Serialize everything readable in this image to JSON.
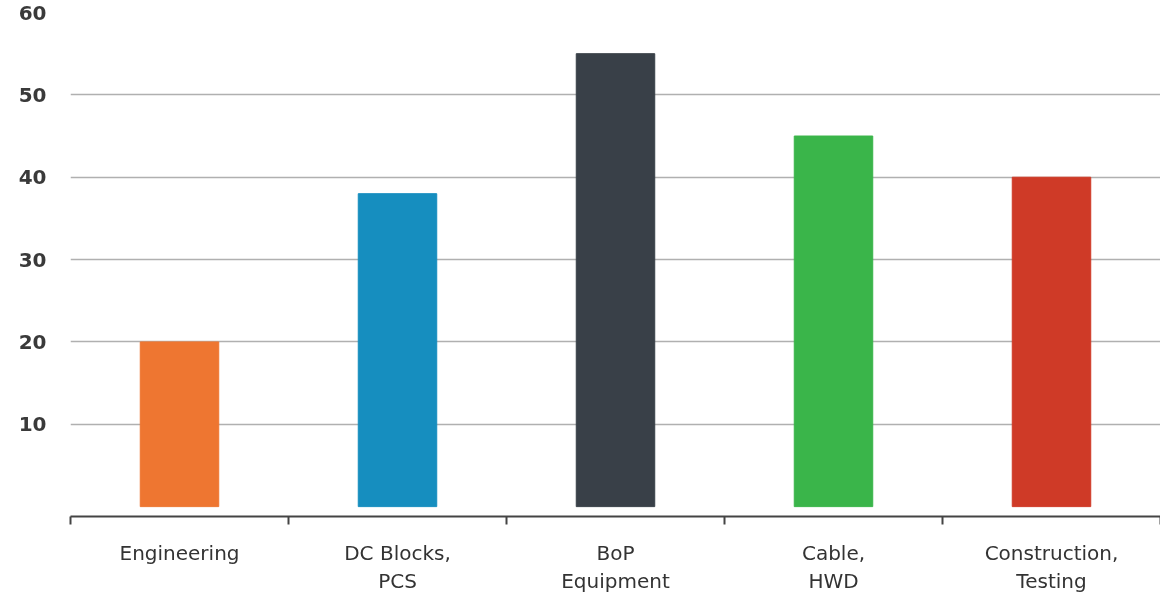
{
  "chart_data": {
    "type": "bar",
    "categories": [
      "Engineering",
      "DC Blocks,\nPCS",
      "BoP\nEquipment",
      "Cable,\nHWD",
      "Construction,\nTesting"
    ],
    "values": [
      20,
      38,
      55,
      45,
      40
    ],
    "colors": [
      "#ee7631",
      "#168ebf",
      "#394048",
      "#3ab54a",
      "#cf3a27"
    ],
    "ylim": [
      -1.2,
      60
    ],
    "yticks": [
      10,
      20,
      30,
      40,
      50,
      60
    ],
    "grid": "y"
  }
}
